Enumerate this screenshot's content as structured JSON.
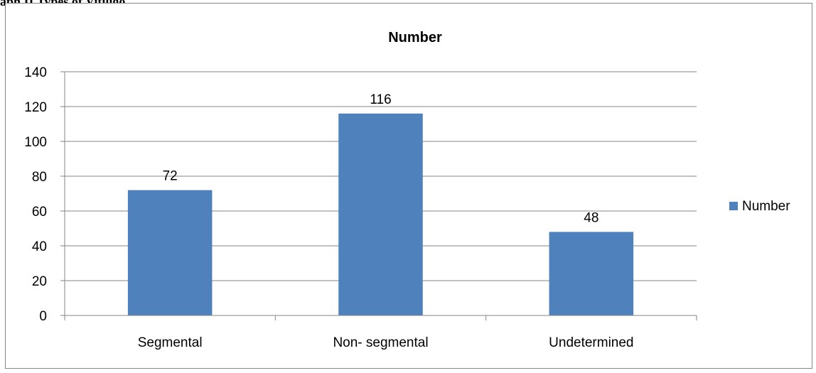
{
  "caption": "aph II Types of Vitiligo",
  "chart_data": {
    "type": "bar",
    "title": "Number",
    "categories": [
      "Segmental",
      "Non- segmental",
      "Undetermined"
    ],
    "series": [
      {
        "name": "Number",
        "values": [
          72,
          116,
          48
        ],
        "color": "#4f81bd"
      }
    ],
    "data_labels": [
      "72",
      "116",
      "48"
    ],
    "y_ticks": [
      0,
      20,
      40,
      60,
      80,
      100,
      120,
      140
    ],
    "ylim": [
      0,
      140
    ],
    "grid": true,
    "legend": {
      "position": "right",
      "label": "Number"
    }
  }
}
